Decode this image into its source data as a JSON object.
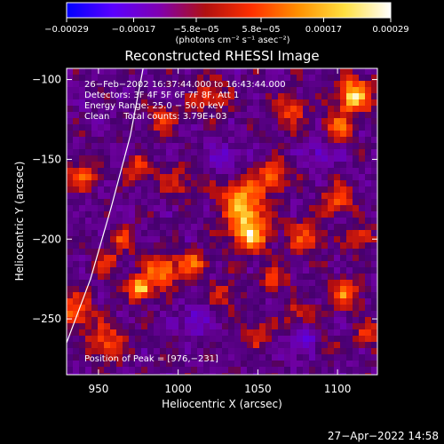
{
  "chart_data": {
    "type": "heatmap",
    "title": "Reconstructed RHESSI Image",
    "xlabel": "Heliocentric X (arcsec)",
    "ylabel": "Heliocentric Y (arcsec)",
    "xlim": [
      930,
      1125
    ],
    "ylim": [
      -285,
      -93
    ],
    "x_ticks": [
      950,
      1000,
      1050,
      1100
    ],
    "x_tick_labels": [
      "950",
      "1000",
      "1050",
      "1100"
    ],
    "y_ticks": [
      -100,
      -150,
      -200,
      -250
    ],
    "y_tick_labels": [
      "−100",
      "−150",
      "−200",
      "−250"
    ],
    "colorbar": {
      "min": -0.00029,
      "max": 0.00029,
      "ticks": [
        -0.00029,
        -0.00017,
        -5.8e-05,
        5.8e-05,
        0.00017,
        0.00029
      ],
      "tick_labels": [
        "−0.00029",
        "−0.00017",
        "−5.8e−05",
        "5.8e−05",
        "0.00017",
        "0.00029"
      ],
      "units_label": "(photons cm⁻² s⁻¹ asec⁻²)",
      "colormap": [
        "#0000ff",
        "#5a00ff",
        "#8000b0",
        "#b01010",
        "#ff3000",
        "#ff9000",
        "#ffe040",
        "#ffffff"
      ]
    },
    "info_lines": [
      "26−Feb−2002 16:37:44.000 to 16:43:44.000",
      "Detectors: 3F 4F 5F 6F 7F 8F, Att 1",
      "Energy Range: 25.0 − 50.0 keV",
      "Clean     Total counts: 3.79E+03"
    ],
    "peak_label": "Position of Peak = [976,−231]",
    "peak": {
      "x": 976,
      "y": -231
    },
    "limb_curve": [
      [
        930,
        -265
      ],
      [
        945,
        -225
      ],
      [
        958,
        -180
      ],
      [
        970,
        -135
      ],
      [
        978,
        -93
      ]
    ],
    "blobs": [
      {
        "x": 976,
        "y": -231,
        "s": 5,
        "a": 1.0
      },
      {
        "x": 990,
        "y": -220,
        "s": 7,
        "a": 0.8
      },
      {
        "x": 1010,
        "y": -215,
        "s": 6,
        "a": 0.6
      },
      {
        "x": 1045,
        "y": -195,
        "s": 9,
        "a": 0.85
      },
      {
        "x": 1040,
        "y": -175,
        "s": 10,
        "a": 0.7
      },
      {
        "x": 1060,
        "y": -160,
        "s": 7,
        "a": 0.55
      },
      {
        "x": 1080,
        "y": -200,
        "s": 8,
        "a": 0.5
      },
      {
        "x": 1110,
        "y": -110,
        "s": 8,
        "a": 0.9
      },
      {
        "x": 1100,
        "y": -130,
        "s": 6,
        "a": 0.55
      },
      {
        "x": 1070,
        "y": -120,
        "s": 7,
        "a": 0.5
      },
      {
        "x": 1020,
        "y": -110,
        "s": 8,
        "a": 0.45
      },
      {
        "x": 990,
        "y": -125,
        "s": 6,
        "a": 0.45
      },
      {
        "x": 1000,
        "y": -165,
        "s": 7,
        "a": 0.4
      },
      {
        "x": 975,
        "y": -155,
        "s": 6,
        "a": 0.5
      },
      {
        "x": 965,
        "y": -200,
        "s": 6,
        "a": 0.45
      },
      {
        "x": 940,
        "y": -160,
        "s": 7,
        "a": 0.5
      },
      {
        "x": 935,
        "y": -245,
        "s": 8,
        "a": 0.6
      },
      {
        "x": 955,
        "y": -265,
        "s": 8,
        "a": 0.55
      },
      {
        "x": 1100,
        "y": -175,
        "s": 7,
        "a": 0.55
      },
      {
        "x": 1115,
        "y": -200,
        "s": 6,
        "a": 0.5
      },
      {
        "x": 1105,
        "y": -235,
        "s": 7,
        "a": 0.6
      },
      {
        "x": 1075,
        "y": -250,
        "s": 7,
        "a": 0.45
      },
      {
        "x": 1050,
        "y": -260,
        "s": 6,
        "a": 0.4
      },
      {
        "x": 1030,
        "y": -235,
        "s": 6,
        "a": 0.4
      },
      {
        "x": 1060,
        "y": -225,
        "s": 6,
        "a": 0.45
      },
      {
        "x": 1090,
        "y": -265,
        "s": 6,
        "a": 0.35
      },
      {
        "x": 1120,
        "y": -260,
        "s": 6,
        "a": 0.45
      },
      {
        "x": 955,
        "y": -215,
        "s": 5,
        "a": 0.5
      }
    ],
    "neg_blobs": [
      {
        "x": 1080,
        "y": -262,
        "s": 7,
        "a": 0.6
      },
      {
        "x": 1010,
        "y": -252,
        "s": 6,
        "a": 0.4
      },
      {
        "x": 1030,
        "y": -150,
        "s": 6,
        "a": 0.4
      },
      {
        "x": 1090,
        "y": -145,
        "s": 6,
        "a": 0.35
      }
    ]
  },
  "footer": {
    "timestamp": "27−Apr−2022 14:58"
  }
}
